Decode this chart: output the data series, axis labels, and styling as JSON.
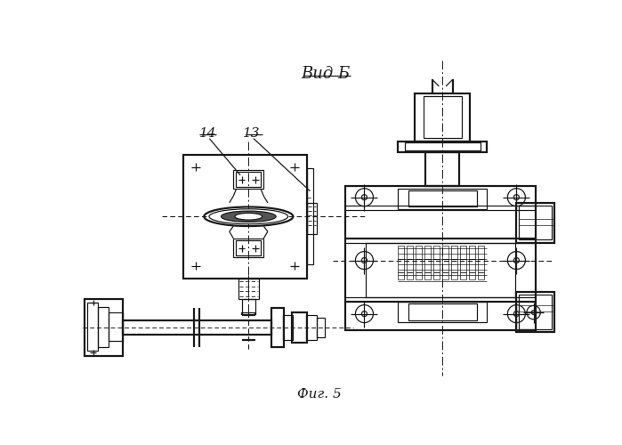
{
  "title": "Вид Б",
  "caption": "Фиг. 5",
  "bg_color": "#ffffff",
  "line_color": "#1a1a1a",
  "lw": 0.9,
  "lw_thick": 1.6,
  "lw_thin": 0.5
}
